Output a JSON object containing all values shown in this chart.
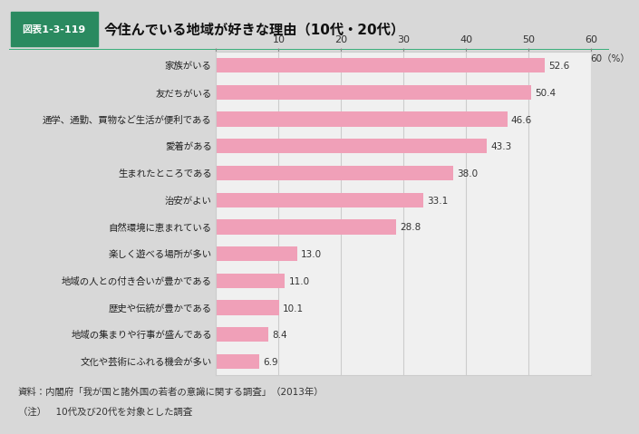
{
  "title_box_label": "図表1-3-119",
  "title_main": "今住んでいる地域が好きな理由（10代・20代）",
  "categories": [
    "文化や芸術にふれる機会が多い",
    "地域の集まりや行事が盛んである",
    "歴史や伝統が豊かである",
    "地域の人との付き合いが豊かである",
    "楽しく遊べる場所が多い",
    "自然環境に恵まれている",
    "治安がよい",
    "生まれたところである",
    "愛着がある",
    "通学、通勤、買物など生活が便利である",
    "友だちがいる",
    "家族がいる"
  ],
  "values": [
    6.9,
    8.4,
    10.1,
    11.0,
    13.0,
    28.8,
    33.1,
    38.0,
    43.3,
    46.6,
    50.4,
    52.6
  ],
  "bar_color": "#f0a0b8",
  "xlim": [
    0,
    60
  ],
  "xticks": [
    0,
    10,
    20,
    30,
    40,
    50,
    60
  ],
  "pct_label": "60（%）",
  "grid_color": "#cccccc",
  "bg_color": "#d8d8d8",
  "plot_bg_color": "#f0f0f0",
  "header_green": "#2a8a60",
  "header_border": "#2aaa70",
  "footer_line1": "資料：内閣府「我が国と諸外国の若者の意識に関する調査」（2013年）",
  "footer_line2": "（注）　10代及び20代を対象とした調査"
}
